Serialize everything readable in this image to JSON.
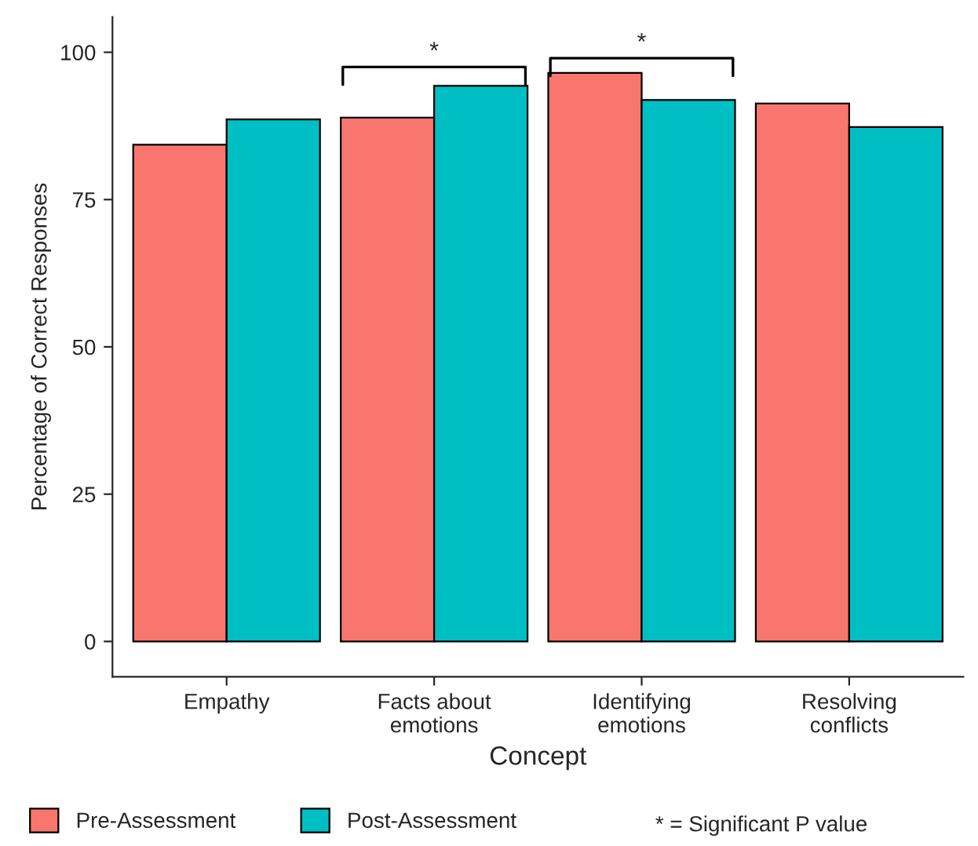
{
  "chart_data": {
    "type": "bar",
    "xlabel": "Concept",
    "ylabel": "Percentage of Correct Responses",
    "categories": [
      "Empathy",
      "Facts about\nemotions",
      "Identifying\nemotions",
      "Resolving\nconflicts"
    ],
    "series": [
      {
        "name": "Pre-Assessment",
        "color": "#f8766d",
        "values": [
          84.3,
          88.9,
          96.5,
          91.3
        ]
      },
      {
        "name": "Post-Assessment",
        "color": "#00bfc4",
        "values": [
          88.6,
          94.3,
          91.9,
          87.3
        ]
      }
    ],
    "ylim": [
      -6,
      106
    ],
    "yticks": [
      0,
      25,
      50,
      75,
      100
    ],
    "grid": false,
    "legend": "bottom",
    "annotations": [
      "*",
      "*",
      "* = Significant P value"
    ]
  }
}
